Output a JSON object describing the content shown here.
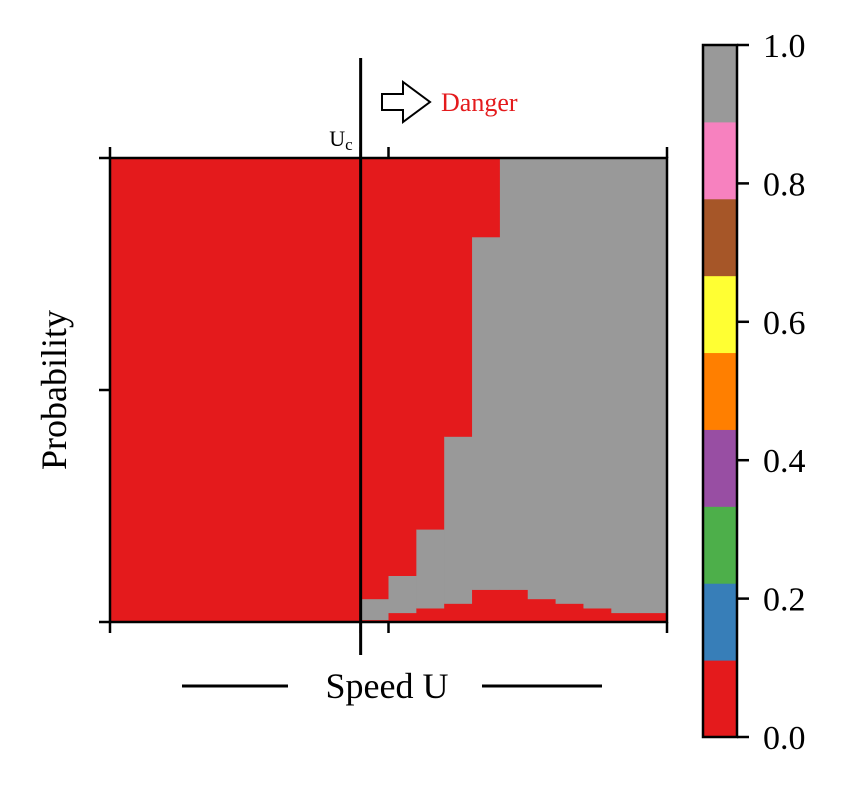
{
  "chart_data": {
    "type": "heatmap",
    "title": "",
    "xlabel": "Speed U",
    "ylabel": "Probability",
    "xlim": [
      0,
      20
    ],
    "ylim": [
      0,
      1
    ],
    "critical_speed": {
      "label": "U",
      "subscript": "c",
      "value": 9
    },
    "danger_annotation": {
      "label": "Danger",
      "color": "#e41a1c"
    },
    "column_edges": [
      0,
      9,
      10,
      11,
      12,
      13,
      14,
      15,
      16,
      17,
      18,
      19,
      20
    ],
    "columns": [
      {
        "x0": 0,
        "x1": 9,
        "segments": [
          {
            "y0": 0,
            "y1": 1,
            "value": 0.0
          }
        ]
      },
      {
        "x0": 9,
        "x1": 10,
        "segments": [
          {
            "y0": 0,
            "y1": 0.005,
            "value": 0.0
          },
          {
            "y0": 0.005,
            "y1": 0.05,
            "value": 1.0
          },
          {
            "y0": 0.05,
            "y1": 1,
            "value": 0.0
          }
        ]
      },
      {
        "x0": 10,
        "x1": 11,
        "segments": [
          {
            "y0": 0,
            "y1": 0.02,
            "value": 0.0
          },
          {
            "y0": 0.02,
            "y1": 0.1,
            "value": 1.0
          },
          {
            "y0": 0.1,
            "y1": 1,
            "value": 0.0
          }
        ]
      },
      {
        "x0": 11,
        "x1": 12,
        "segments": [
          {
            "y0": 0,
            "y1": 0.03,
            "value": 0.0
          },
          {
            "y0": 0.03,
            "y1": 0.2,
            "value": 1.0
          },
          {
            "y0": 0.2,
            "y1": 1,
            "value": 0.0
          }
        ]
      },
      {
        "x0": 12,
        "x1": 13,
        "segments": [
          {
            "y0": 0,
            "y1": 0.04,
            "value": 0.0
          },
          {
            "y0": 0.04,
            "y1": 0.4,
            "value": 1.0
          },
          {
            "y0": 0.4,
            "y1": 1,
            "value": 0.0
          }
        ]
      },
      {
        "x0": 13,
        "x1": 14,
        "segments": [
          {
            "y0": 0,
            "y1": 0.07,
            "value": 0.0
          },
          {
            "y0": 0.07,
            "y1": 0.83,
            "value": 1.0
          },
          {
            "y0": 0.83,
            "y1": 1,
            "value": 0.0
          }
        ]
      },
      {
        "x0": 14,
        "x1": 15,
        "segments": [
          {
            "y0": 0,
            "y1": 0.07,
            "value": 0.0
          },
          {
            "y0": 0.07,
            "y1": 1,
            "value": 1.0
          }
        ]
      },
      {
        "x0": 15,
        "x1": 16,
        "segments": [
          {
            "y0": 0,
            "y1": 0.05,
            "value": 0.0
          },
          {
            "y0": 0.05,
            "y1": 1,
            "value": 1.0
          }
        ]
      },
      {
        "x0": 16,
        "x1": 17,
        "segments": [
          {
            "y0": 0,
            "y1": 0.04,
            "value": 0.0
          },
          {
            "y0": 0.04,
            "y1": 1,
            "value": 1.0
          }
        ]
      },
      {
        "x0": 17,
        "x1": 18,
        "segments": [
          {
            "y0": 0,
            "y1": 0.03,
            "value": 0.0
          },
          {
            "y0": 0.03,
            "y1": 1,
            "value": 1.0
          }
        ]
      },
      {
        "x0": 18,
        "x1": 19,
        "segments": [
          {
            "y0": 0,
            "y1": 0.02,
            "value": 0.0
          },
          {
            "y0": 0.02,
            "y1": 1,
            "value": 1.0
          }
        ]
      },
      {
        "x0": 19,
        "x1": 20,
        "segments": [
          {
            "y0": 0,
            "y1": 0.02,
            "value": 0.0
          },
          {
            "y0": 0.02,
            "y1": 1,
            "value": 1.0
          }
        ]
      }
    ],
    "xticks": [
      0,
      9,
      10,
      20
    ],
    "yticks": [
      0,
      0.5,
      1
    ],
    "colorbar": {
      "range": [
        0,
        1
      ],
      "colors": [
        "#e41a1c",
        "#377eb8",
        "#4daf4a",
        "#984ea3",
        "#ff7f00",
        "#ffff33",
        "#a65628",
        "#f781bf",
        "#999999"
      ],
      "ticks": [
        0.0,
        0.2,
        0.4,
        0.6,
        0.8,
        1.0
      ],
      "tick_labels": [
        "0.0",
        "0.2",
        "0.4",
        "0.6",
        "0.8",
        "1.0"
      ]
    }
  }
}
